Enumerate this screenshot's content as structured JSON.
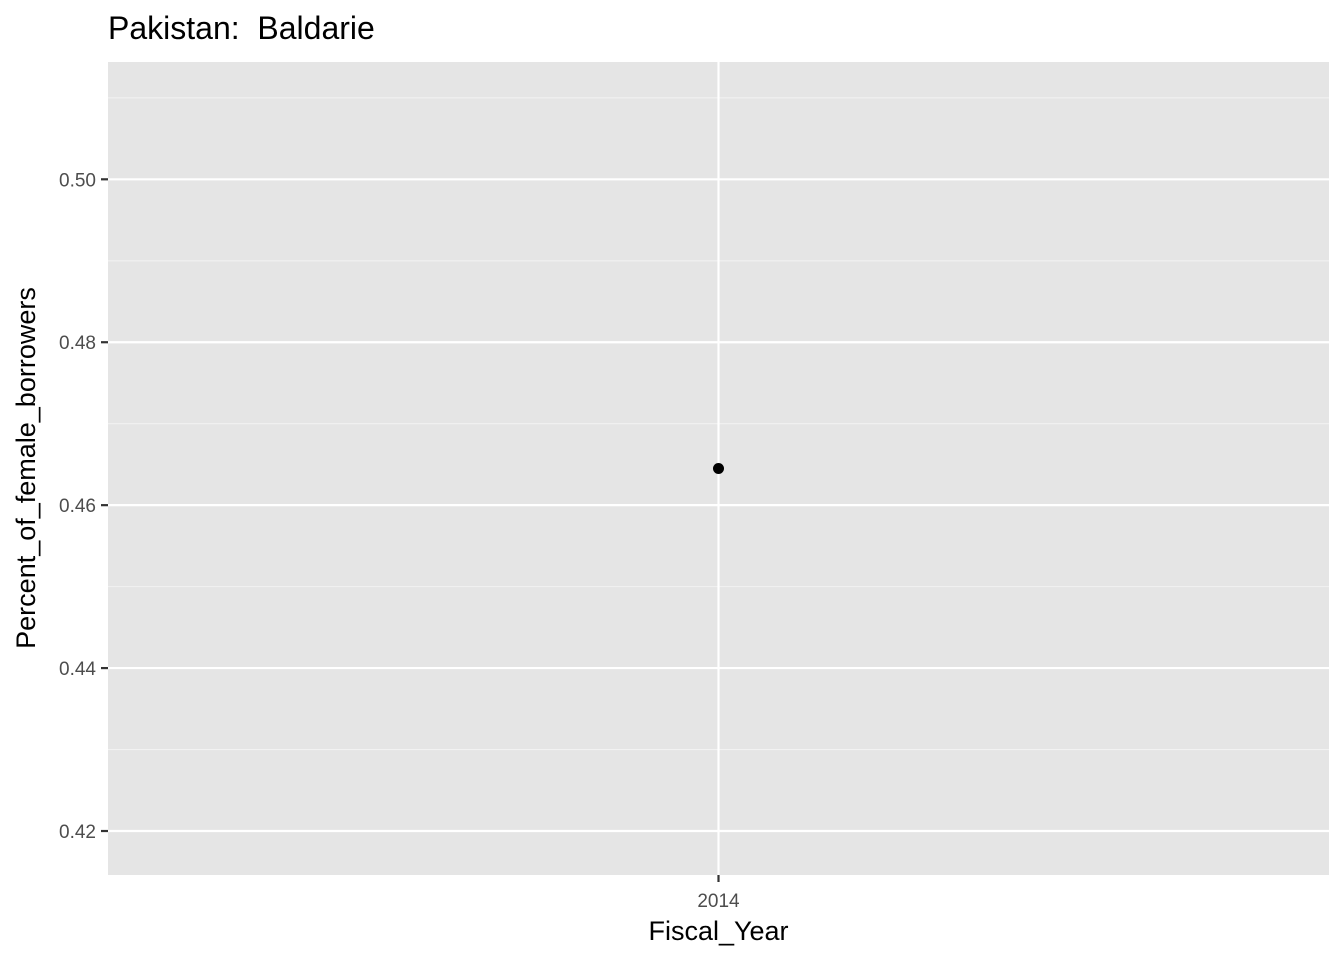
{
  "chart_data": {
    "type": "scatter",
    "title": "Pakistan:  Baldarie",
    "xlabel": "Fiscal_Year",
    "ylabel": "Percent_of_female_borrowers",
    "x_categories": [
      "2014"
    ],
    "points": [
      {
        "x": "2014",
        "y": 0.4645
      }
    ],
    "ylim": [
      0.4146,
      0.5144
    ],
    "y_ticks": [
      0.42,
      0.44,
      0.46,
      0.48,
      0.5
    ],
    "y_tick_labels": [
      "0.42",
      "0.44",
      "0.46",
      "0.48",
      "0.50"
    ],
    "grid": true,
    "legend": "none",
    "colors": {
      "panel_background": "#e5e5e5",
      "grid_major": "#ffffff",
      "grid_minor": "#f2f2f2",
      "point": "#000000",
      "tick_mark": "#333333",
      "tick_label": "#4d4d4d"
    }
  }
}
